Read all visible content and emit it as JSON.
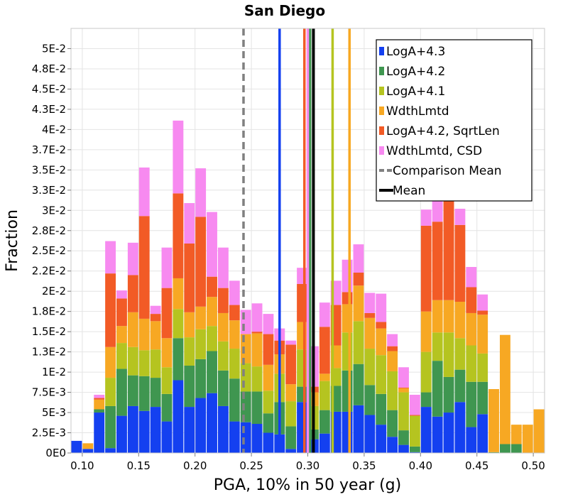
{
  "chart_data": {
    "type": "bar",
    "stacked": true,
    "title": "San Diego",
    "xlabel": "PGA, 10% in 50 year (g)",
    "ylabel": "Fraction",
    "xlim": [
      0.09,
      0.51
    ],
    "ylim": [
      0,
      0.0525
    ],
    "bin_width": 0.01,
    "x_ticks": [
      0.1,
      0.15,
      0.2,
      0.25,
      0.3,
      0.35,
      0.4,
      0.45,
      0.5
    ],
    "x_tick_labels": [
      "0.10",
      "0.15",
      "0.20",
      "0.25",
      "0.30",
      "0.35",
      "0.40",
      "0.45",
      "0.50"
    ],
    "y_ticks": [
      0,
      0.0025,
      0.005,
      0.0075,
      0.01,
      0.0125,
      0.015,
      0.0175,
      0.02,
      0.0225,
      0.025,
      0.0275,
      0.03,
      0.0325,
      0.035,
      0.0375,
      0.04,
      0.0425,
      0.045,
      0.0475,
      0.05
    ],
    "y_tick_labels": [
      "0E0",
      "2.5E-3",
      "5E-3",
      "7.5E-3",
      "1E-2",
      "1.3E-2",
      "1.5E-2",
      "1.8E-2",
      "2E-2",
      "2.2E-2",
      "2.5E-2",
      "2.8E-2",
      "3E-2",
      "3.3E-2",
      "3.5E-2",
      "3.7E-2",
      "4E-2",
      "4.3E-2",
      "4.5E-2",
      "4.8E-2",
      "5E-2"
    ],
    "bin_lefts": [
      0.09,
      0.1,
      0.11,
      0.12,
      0.13,
      0.14,
      0.15,
      0.16,
      0.17,
      0.18,
      0.19,
      0.2,
      0.21,
      0.22,
      0.23,
      0.24,
      0.25,
      0.26,
      0.27,
      0.28,
      0.29,
      0.3,
      0.31,
      0.32,
      0.33,
      0.34,
      0.35,
      0.36,
      0.37,
      0.38,
      0.39,
      0.4,
      0.41,
      0.42,
      0.43,
      0.44,
      0.45,
      0.46,
      0.47,
      0.48,
      0.49,
      0.5
    ],
    "series": [
      {
        "name": "LogA+4.3",
        "color": "#1440f0",
        "values": [
          0.0015,
          0.0005,
          0.005,
          0.0006,
          0.0046,
          0.0058,
          0.0052,
          0.0057,
          0.0039,
          0.009,
          0.0057,
          0.0068,
          0.0074,
          0.0058,
          0.0039,
          0.0038,
          0.0036,
          0.0025,
          0.0023,
          0.0005,
          0.0063,
          0.0017,
          0.0024,
          0.0051,
          0.0051,
          0.0059,
          0.0047,
          0.0035,
          0.002,
          0.001,
          0.0001,
          0.0057,
          0.0045,
          0.005,
          0.0063,
          0.0032,
          0.0048,
          0,
          0,
          0,
          0,
          0
        ]
      },
      {
        "name": "LogA+4.2",
        "color": "#3f9650",
        "values": [
          0,
          0,
          0.0004,
          0.0052,
          0.0058,
          0.0038,
          0.0043,
          0.0036,
          0.0034,
          0.0052,
          0.0051,
          0.0048,
          0.0052,
          0.0044,
          0.0053,
          0.0038,
          0.004,
          0.0024,
          0.004,
          0.0028,
          0.0019,
          0.0012,
          0.0029,
          0.0032,
          0.0051,
          0.0051,
          0.0037,
          0.0038,
          0.0033,
          0.0018,
          0.0007,
          0.0018,
          0.0069,
          0.0044,
          0.004,
          0.0056,
          0.004,
          0.0001,
          0.0011,
          0.0011,
          0,
          0
        ]
      },
      {
        "name": "LogA+4.1",
        "color": "#b5c420",
        "values": [
          0,
          0,
          0,
          0.0035,
          0.0032,
          0.0035,
          0.0032,
          0.0035,
          0.0033,
          0.0036,
          0.0035,
          0.0037,
          0.0031,
          0.0036,
          0.0037,
          0.0035,
          0.0031,
          0.0028,
          0.0035,
          0.0031,
          0.0046,
          0.0029,
          0.0036,
          0.0022,
          0.0047,
          0.0053,
          0.0045,
          0.0048,
          0.0048,
          0.0047,
          0.0038,
          0.005,
          0.0035,
          0.0055,
          0.0039,
          0.0045,
          0.0035,
          0,
          0,
          0,
          0,
          0
        ]
      },
      {
        "name": "WdthLmtd",
        "color": "#f7a823",
        "values": [
          0,
          0.0007,
          0.0012,
          0.0038,
          0.0021,
          0.0043,
          0.0039,
          0.0035,
          0.0036,
          0.0038,
          0.0031,
          0.0028,
          0.0036,
          0.0035,
          0.0035,
          0.0036,
          0.0041,
          0.0032,
          0.0024,
          0.0021,
          0.0034,
          0.0017,
          0.0009,
          0.0028,
          0.0035,
          0.0044,
          0.0038,
          0.0033,
          0.0025,
          0.0005,
          0,
          0.005,
          0.004,
          0.004,
          0.0045,
          0.004,
          0.0048,
          0.0078,
          0.0135,
          0.0024,
          0.0035,
          0.0054
        ]
      },
      {
        "name": "LogA+4.2, SqrtLen",
        "color": "#f25b26",
        "values": [
          0,
          0,
          0.0002,
          0.0091,
          0.0034,
          0.0046,
          0.0127,
          0.0009,
          0.0062,
          0.0105,
          0.0085,
          0.0111,
          0.0025,
          0.0031,
          0.0019,
          0,
          0.0002,
          0.0038,
          0.0017,
          0.0049,
          0.0047,
          0.0007,
          0.0058,
          0.005,
          0.0015,
          0.0016,
          0.0006,
          0.0008,
          0.0006,
          0.0001,
          0.0001,
          0.0106,
          0.0097,
          0.0134,
          0.0095,
          0.0032,
          0.0005,
          0,
          0,
          0,
          0,
          0
        ]
      },
      {
        "name": "WdthLmtd, CSD",
        "color": "#f78af0",
        "values": [
          0,
          0,
          0.0004,
          0.004,
          0.001,
          0.004,
          0.006,
          0.001,
          0.005,
          0.009,
          0.005,
          0.006,
          0.008,
          0.005,
          0.003,
          0.003,
          0.0035,
          0.0025,
          0.0015,
          0.0005,
          0.002,
          0.005,
          0.003,
          0.003,
          0.004,
          0.0035,
          0.0025,
          0.0035,
          0.0015,
          0.0025,
          0.0025,
          0.002,
          0.008,
          0.003,
          0.002,
          0.0025,
          0.002,
          0,
          0,
          0,
          0,
          0
        ]
      }
    ],
    "vertical_lines": [
      {
        "name": "LogA+4.3",
        "x": 0.275,
        "color": "#1440f0"
      },
      {
        "name": "LogA+4.2",
        "x": 0.302,
        "color": "#3f9650"
      },
      {
        "name": "LogA+4.1",
        "x": 0.322,
        "color": "#b5c420"
      },
      {
        "name": "WdthLmtd",
        "x": 0.337,
        "color": "#f7a823"
      },
      {
        "name": "LogA+4.2, SqrtLen",
        "x": 0.297,
        "color": "#f25b26"
      },
      {
        "name": "WdthLmtd, CSD",
        "x": 0.3,
        "color": "#f78af0"
      },
      {
        "name": "Comparison Mean",
        "x": 0.243,
        "color": "#808080",
        "dashed": true
      },
      {
        "name": "Mean",
        "x": 0.305,
        "color": "#000000"
      }
    ],
    "legend": {
      "position": "top-right",
      "entries": [
        {
          "label": "LogA+4.3",
          "color": "#1440f0",
          "style": "box"
        },
        {
          "label": "LogA+4.2",
          "color": "#3f9650",
          "style": "box"
        },
        {
          "label": "LogA+4.1",
          "color": "#b5c420",
          "style": "box"
        },
        {
          "label": "WdthLmtd",
          "color": "#f7a823",
          "style": "box"
        },
        {
          "label": "LogA+4.2, SqrtLen",
          "color": "#f25b26",
          "style": "box"
        },
        {
          "label": "WdthLmtd, CSD",
          "color": "#f78af0",
          "style": "box"
        },
        {
          "label": "Comparison Mean",
          "color": "#808080",
          "style": "dashed"
        },
        {
          "label": "Mean",
          "color": "#000000",
          "style": "line"
        }
      ]
    },
    "grid": true
  }
}
